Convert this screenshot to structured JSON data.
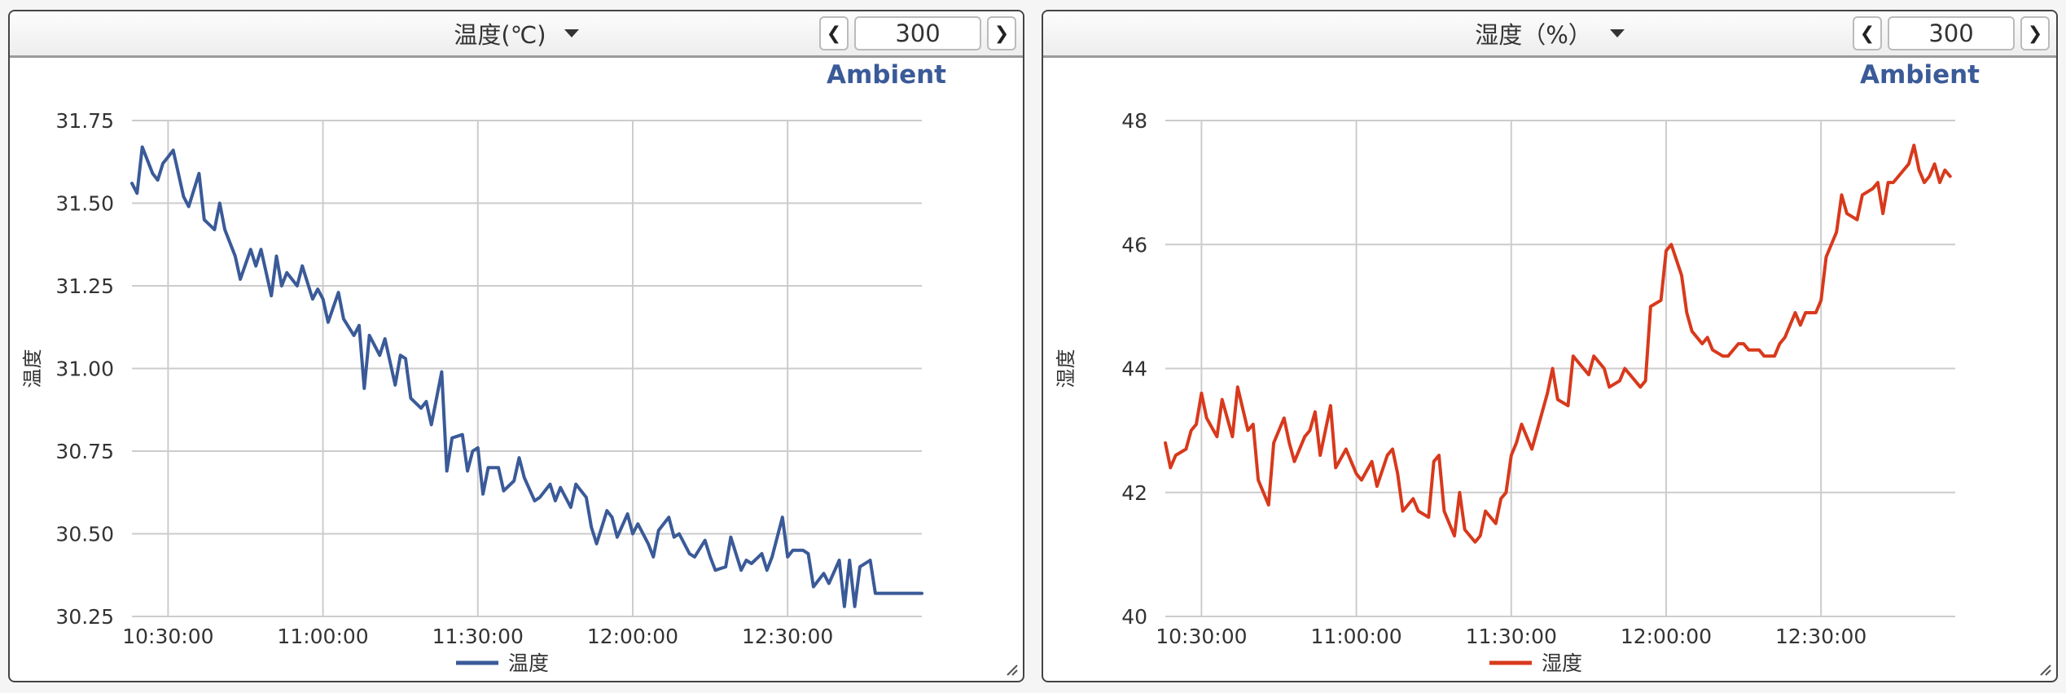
{
  "panels": [
    {
      "title": "温度(℃)",
      "range_value": "300",
      "brand": "Ambient",
      "color": "#3a5a98"
    },
    {
      "title": "湿度（%）",
      "range_value": "300",
      "brand": "Ambient",
      "color": "#d8391c"
    }
  ],
  "chart_data": [
    {
      "type": "line",
      "title": "",
      "xlabel": "",
      "ylabel": "温度",
      "legend_position": "bottom",
      "grid": true,
      "x_ticks": [
        "10:30:00",
        "11:00:00",
        "11:30:00",
        "12:00:00",
        "12:30:00"
      ],
      "y_ticks": [
        "30.25",
        "30.50",
        "30.75",
        "31.00",
        "31.25",
        "31.50",
        "31.75"
      ],
      "x_range": [
        "10:23",
        "12:56"
      ],
      "ylim": [
        30.25,
        31.75
      ],
      "series": [
        {
          "name": "温度",
          "color": "#3a5a98",
          "x": [
            "10:23",
            "10:24",
            "10:25",
            "10:27",
            "10:28",
            "10:29",
            "10:30",
            "10:31",
            "10:33",
            "10:34",
            "10:36",
            "10:37",
            "10:39",
            "10:40",
            "10:41",
            "10:43",
            "10:44",
            "10:46",
            "10:47",
            "10:48",
            "10:50",
            "10:51",
            "10:52",
            "10:53",
            "10:55",
            "10:56",
            "10:58",
            "10:59",
            "11:00",
            "11:01",
            "11:03",
            "11:04",
            "11:06",
            "11:07",
            "11:08",
            "11:09",
            "11:11",
            "11:12",
            "11:14",
            "11:15",
            "11:16",
            "11:17",
            "11:19",
            "11:20",
            "11:21",
            "11:23",
            "11:24",
            "11:25",
            "11:27",
            "11:28",
            "11:29",
            "11:30",
            "11:31",
            "11:32",
            "11:34",
            "11:35",
            "11:37",
            "11:38",
            "11:39",
            "11:41",
            "11:42",
            "11:44",
            "11:45",
            "11:46",
            "11:48",
            "11:49",
            "11:51",
            "11:52",
            "11:53",
            "11:55",
            "11:56",
            "11:57",
            "11:59",
            "12:00",
            "12:01",
            "12:03",
            "12:04",
            "12:05",
            "12:07",
            "12:08",
            "12:09",
            "12:11",
            "12:12",
            "12:14",
            "12:15",
            "12:16",
            "12:18",
            "12:19",
            "12:21",
            "12:22",
            "12:23",
            "12:25",
            "12:26",
            "12:27",
            "12:29",
            "12:30",
            "12:31",
            "12:33",
            "12:34",
            "12:35",
            "12:37",
            "12:38",
            "12:40",
            "12:41",
            "12:42",
            "12:43",
            "12:44",
            "12:46",
            "12:47",
            "12:48",
            "12:49",
            "12:50",
            "12:51",
            "12:52",
            "12:53",
            "12:54",
            "12:55",
            "12:56"
          ],
          "values": [
            31.56,
            31.53,
            31.67,
            31.59,
            31.57,
            31.62,
            31.64,
            31.66,
            31.52,
            31.49,
            31.59,
            31.45,
            31.42,
            31.5,
            31.42,
            31.34,
            31.27,
            31.36,
            31.31,
            31.36,
            31.22,
            31.34,
            31.25,
            31.29,
            31.25,
            31.31,
            31.21,
            31.24,
            31.21,
            31.14,
            31.23,
            31.15,
            31.1,
            31.13,
            30.94,
            31.1,
            31.04,
            31.09,
            30.95,
            31.04,
            31.03,
            30.91,
            30.88,
            30.9,
            30.83,
            30.99,
            30.69,
            30.79,
            30.8,
            30.69,
            30.75,
            30.76,
            30.62,
            30.7,
            30.7,
            30.63,
            30.66,
            30.73,
            30.67,
            30.6,
            30.61,
            30.65,
            30.6,
            30.64,
            30.58,
            30.65,
            30.61,
            30.52,
            30.47,
            30.57,
            30.55,
            30.49,
            30.56,
            30.5,
            30.53,
            30.47,
            30.43,
            30.51,
            30.55,
            30.49,
            30.5,
            30.44,
            30.43,
            30.48,
            30.43,
            30.39,
            30.4,
            30.49,
            30.39,
            30.42,
            30.41,
            30.44,
            30.39,
            30.43,
            30.55,
            30.43,
            30.45,
            30.45,
            30.44,
            30.34,
            30.38,
            30.35,
            30.42,
            30.28,
            30.42,
            30.28,
            30.4,
            30.42,
            30.32,
            30.32,
            30.32,
            30.32,
            30.32,
            30.32,
            30.32,
            30.32,
            30.32,
            30.32
          ]
        }
      ]
    },
    {
      "type": "line",
      "title": "",
      "xlabel": "",
      "ylabel": "湿度",
      "legend_position": "bottom",
      "grid": true,
      "x_ticks": [
        "10:30:00",
        "11:00:00",
        "11:30:00",
        "12:00:00",
        "12:30:00"
      ],
      "y_ticks": [
        "40",
        "42",
        "44",
        "46",
        "48"
      ],
      "x_range": [
        "10:23",
        "12:56"
      ],
      "ylim": [
        40,
        48
      ],
      "series": [
        {
          "name": "湿度",
          "color": "#d8391c",
          "x": [
            "10:23",
            "10:24",
            "10:25",
            "10:27",
            "10:28",
            "10:29",
            "10:30",
            "10:31",
            "10:33",
            "10:34",
            "10:36",
            "10:37",
            "10:39",
            "10:40",
            "10:41",
            "10:43",
            "10:44",
            "10:46",
            "10:47",
            "10:48",
            "10:50",
            "10:51",
            "10:52",
            "10:53",
            "10:55",
            "10:56",
            "10:58",
            "10:59",
            "11:00",
            "11:01",
            "11:03",
            "11:04",
            "11:06",
            "11:07",
            "11:08",
            "11:09",
            "11:11",
            "11:12",
            "11:14",
            "11:15",
            "11:16",
            "11:17",
            "11:19",
            "11:20",
            "11:21",
            "11:23",
            "11:24",
            "11:25",
            "11:27",
            "11:28",
            "11:29",
            "11:30",
            "11:31",
            "11:32",
            "11:34",
            "11:35",
            "11:37",
            "11:38",
            "11:39",
            "11:41",
            "11:42",
            "11:44",
            "11:45",
            "11:46",
            "11:48",
            "11:49",
            "11:51",
            "11:52",
            "11:53",
            "11:55",
            "11:56",
            "11:57",
            "11:59",
            "12:00",
            "12:01",
            "12:03",
            "12:04",
            "12:05",
            "12:07",
            "12:08",
            "12:09",
            "12:11",
            "12:12",
            "12:14",
            "12:15",
            "12:16",
            "12:18",
            "12:19",
            "12:21",
            "12:22",
            "12:23",
            "12:25",
            "12:26",
            "12:27",
            "12:29",
            "12:30",
            "12:31",
            "12:33",
            "12:34",
            "12:35",
            "12:37",
            "12:38",
            "12:40",
            "12:41",
            "12:42",
            "12:43",
            "12:44",
            "12:46",
            "12:47",
            "12:48",
            "12:49",
            "12:50",
            "12:51",
            "12:52",
            "12:53",
            "12:54",
            "12:55"
          ],
          "values": [
            42.8,
            42.4,
            42.6,
            42.7,
            43.0,
            43.1,
            43.6,
            43.2,
            42.9,
            43.5,
            42.9,
            43.7,
            43.0,
            43.1,
            42.2,
            41.8,
            42.8,
            43.2,
            42.8,
            42.5,
            42.9,
            43.0,
            43.3,
            42.6,
            43.4,
            42.4,
            42.7,
            42.5,
            42.3,
            42.2,
            42.5,
            42.1,
            42.6,
            42.7,
            42.3,
            41.7,
            41.9,
            41.7,
            41.6,
            42.5,
            42.6,
            41.7,
            41.3,
            42.0,
            41.4,
            41.2,
            41.3,
            41.7,
            41.5,
            41.9,
            42.0,
            42.6,
            42.8,
            43.1,
            42.7,
            43.0,
            43.6,
            44.0,
            43.5,
            43.4,
            44.2,
            44.0,
            43.9,
            44.2,
            44.0,
            43.7,
            43.8,
            44.0,
            43.9,
            43.7,
            43.8,
            45.0,
            45.1,
            45.9,
            46.0,
            45.5,
            44.9,
            44.6,
            44.4,
            44.5,
            44.3,
            44.2,
            44.2,
            44.4,
            44.4,
            44.3,
            44.3,
            44.2,
            44.2,
            44.4,
            44.5,
            44.9,
            44.7,
            44.9,
            44.9,
            45.1,
            45.8,
            46.2,
            46.8,
            46.5,
            46.4,
            46.8,
            46.9,
            47.0,
            46.5,
            47.0,
            47.0,
            47.2,
            47.3,
            47.6,
            47.2,
            47.0,
            47.1,
            47.3,
            47.0,
            47.2,
            47.1
          ]
        }
      ]
    }
  ]
}
